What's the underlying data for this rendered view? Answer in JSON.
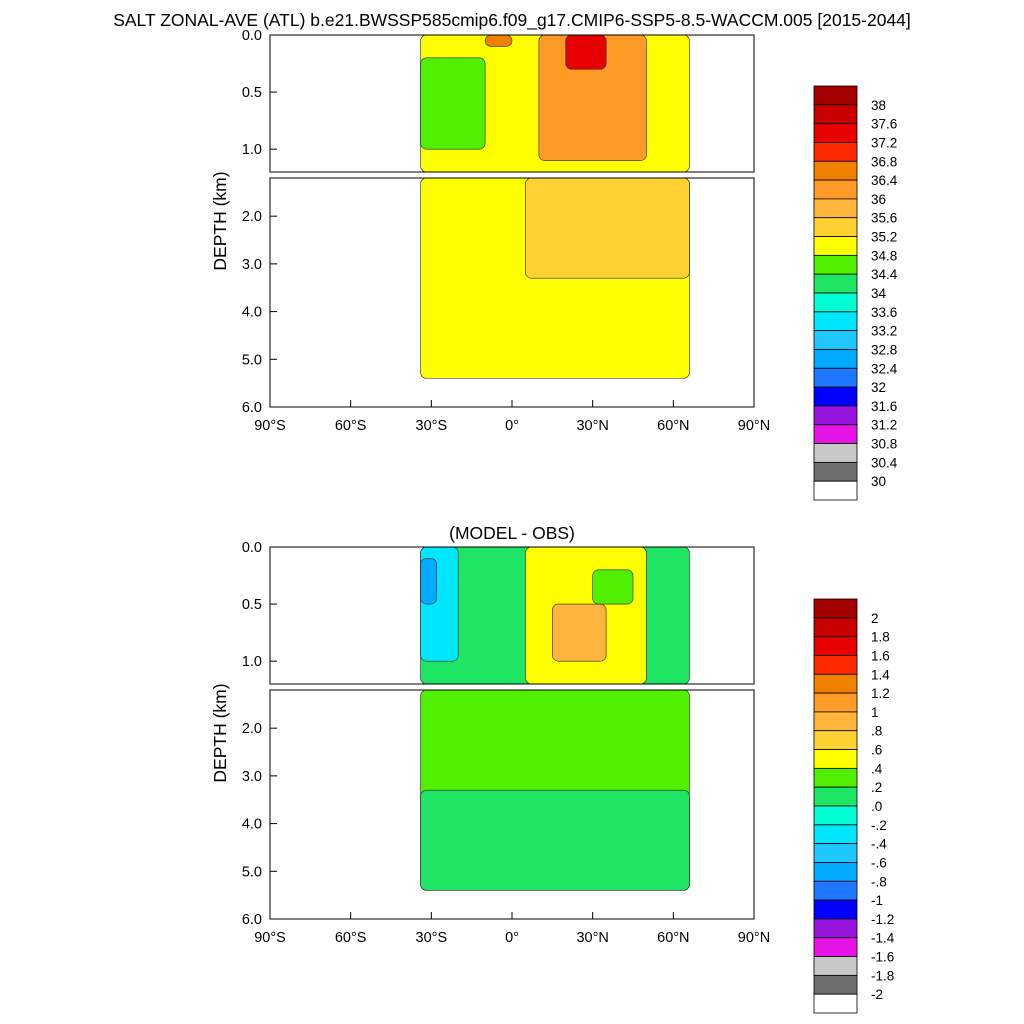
{
  "figure": {
    "title": "SALT ZONAL-AVE (ATL) b.e21.BWSSP585cmip6.f09_g17.CMIP6-SSP5-8.5-WACCM.005 [2015-2044]"
  },
  "chart_data": [
    {
      "type": "heatmap",
      "subtitle": "",
      "ylabel": "DEPTH (km)",
      "xlabel": "",
      "x_range_deg": [
        -90,
        90
      ],
      "y_range_km": [
        0,
        6
      ],
      "x_ticks": [
        "90°S",
        "60°S",
        "30°S",
        "0°",
        "30°N",
        "60°N",
        "90°N"
      ],
      "y_ticks_upper": [
        "0.0",
        "0.5",
        "1.0"
      ],
      "y_ticks_lower": [
        "2.0",
        "3.0",
        "4.0",
        "5.0",
        "6.0"
      ],
      "upper_panel_depth_km": [
        0,
        1.2
      ],
      "lower_panel_depth_km": [
        1.2,
        6
      ],
      "data_extent_deg": [
        -34,
        66
      ],
      "colorbar_labels": [
        "38",
        "37.6",
        "37.2",
        "36.8",
        "36.4",
        "36",
        "35.6",
        "35.2",
        "34.8",
        "34.4",
        "34",
        "33.6",
        "33.2",
        "32.8",
        "32.4",
        "32",
        "31.6",
        "31.2",
        "30.8",
        "30.4",
        "30"
      ],
      "colorbar_colors": [
        "#a50000",
        "#c80000",
        "#e60000",
        "#ff2a00",
        "#f08000",
        "#ff9a26",
        "#ffb43c",
        "#ffd232",
        "#ffff00",
        "#50f000",
        "#1ee664",
        "#00ffd2",
        "#00e6ff",
        "#1ec8ff",
        "#00aaff",
        "#1e78ff",
        "#0000ff",
        "#9614dc",
        "#e614e6",
        "#c8c8c8",
        "#6e6e6e",
        "#ffffff"
      ],
      "regions": [
        {
          "band": "upper",
          "lat": [
            -34,
            66
          ],
          "depth_km": [
            0,
            1.2
          ],
          "value": 35.0
        },
        {
          "band": "upper",
          "lat": [
            -34,
            -10
          ],
          "depth_km": [
            0.2,
            1.0
          ],
          "value": 34.6
        },
        {
          "band": "upper",
          "lat": [
            10,
            50
          ],
          "depth_km": [
            0,
            1.1
          ],
          "value": 36.2
        },
        {
          "band": "upper",
          "lat": [
            20,
            35
          ],
          "depth_km": [
            0,
            0.3
          ],
          "value": 37.2
        },
        {
          "band": "upper",
          "lat": [
            -10,
            0
          ],
          "depth_km": [
            0,
            0.1
          ],
          "value": 36.6
        },
        {
          "band": "lower",
          "lat": [
            -34,
            66
          ],
          "depth_km": [
            1.2,
            5.4
          ],
          "value": 35.0
        },
        {
          "band": "lower",
          "lat": [
            5,
            66
          ],
          "depth_km": [
            1.2,
            3.3
          ],
          "value": 35.3
        }
      ]
    },
    {
      "type": "heatmap",
      "subtitle": "(MODEL - OBS)",
      "ylabel": "DEPTH (km)",
      "xlabel": "",
      "x_range_deg": [
        -90,
        90
      ],
      "y_range_km": [
        0,
        6
      ],
      "x_ticks": [
        "90°S",
        "60°S",
        "30°S",
        "0°",
        "30°N",
        "60°N",
        "90°N"
      ],
      "y_ticks_upper": [
        "0.0",
        "0.5",
        "1.0"
      ],
      "y_ticks_lower": [
        "2.0",
        "3.0",
        "4.0",
        "5.0",
        "6.0"
      ],
      "upper_panel_depth_km": [
        0,
        1.2
      ],
      "lower_panel_depth_km": [
        1.2,
        6
      ],
      "data_extent_deg": [
        -34,
        66
      ],
      "colorbar_labels": [
        "2",
        "1.8",
        "1.6",
        "1.4",
        "1.2",
        "1",
        ".8",
        ".6",
        ".4",
        ".2",
        ".0",
        "-.2",
        "-.4",
        "-.6",
        "-.8",
        "-1",
        "-1.2",
        "-1.4",
        "-1.6",
        "-1.8",
        "-2"
      ],
      "colorbar_colors": [
        "#a50000",
        "#c80000",
        "#e60000",
        "#ff2a00",
        "#f08000",
        "#ff9a26",
        "#ffb43c",
        "#ffd232",
        "#ffff00",
        "#50f000",
        "#1ee664",
        "#00ffd2",
        "#00e6ff",
        "#1ec8ff",
        "#00aaff",
        "#1e78ff",
        "#0000ff",
        "#9614dc",
        "#e614e6",
        "#c8c8c8",
        "#6e6e6e",
        "#ffffff"
      ],
      "regions": [
        {
          "band": "upper",
          "lat": [
            -34,
            66
          ],
          "depth_km": [
            0,
            1.2
          ],
          "value": 0.1
        },
        {
          "band": "upper",
          "lat": [
            -34,
            -20
          ],
          "depth_km": [
            0,
            1.0
          ],
          "value": -0.3
        },
        {
          "band": "upper",
          "lat": [
            -34,
            -28
          ],
          "depth_km": [
            0.1,
            0.5
          ],
          "value": -0.7
        },
        {
          "band": "upper",
          "lat": [
            5,
            50
          ],
          "depth_km": [
            0,
            1.2
          ],
          "value": 0.5
        },
        {
          "band": "upper",
          "lat": [
            15,
            35
          ],
          "depth_km": [
            0.5,
            1.0
          ],
          "value": 0.9
        },
        {
          "band": "upper",
          "lat": [
            30,
            45
          ],
          "depth_km": [
            0.2,
            0.5
          ],
          "value": 0.3
        },
        {
          "band": "lower",
          "lat": [
            -34,
            66
          ],
          "depth_km": [
            1.2,
            5.4
          ],
          "value": 0.3
        },
        {
          "band": "lower",
          "lat": [
            -34,
            66
          ],
          "depth_km": [
            3.3,
            5.4
          ],
          "value": 0.1
        }
      ]
    }
  ]
}
